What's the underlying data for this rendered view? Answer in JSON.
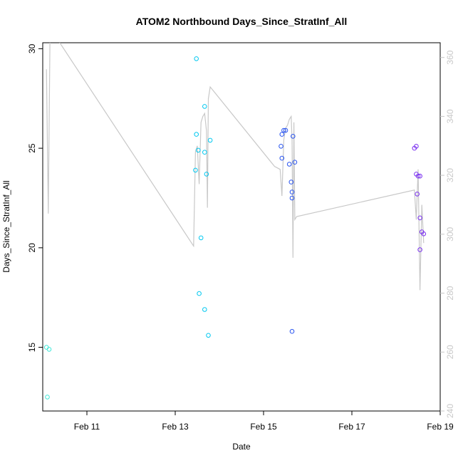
{
  "chart_data": {
    "type": "scatter",
    "title": "ATOM2 Northbound Days_Since_StratInf_All",
    "xlabel": "Date",
    "ylabel": "Days_Since_StratInf_All",
    "x_ticks": [
      "Feb 11",
      "Feb 13",
      "Feb 15",
      "Feb 17",
      "Feb 19"
    ],
    "y_ticks": [
      "15",
      "20",
      "25",
      "30"
    ],
    "y2_ticks": [
      "240",
      "260",
      "280",
      "300",
      "320",
      "340",
      "360"
    ],
    "xlim": [
      "Feb 10 00:00",
      "Feb 19 00:00"
    ],
    "ylim": [
      11.8,
      30.3
    ],
    "y2lim": [
      240,
      365
    ],
    "colors": {
      "cyan_light": "#40e8d8",
      "cyan": "#00c8f0",
      "blue": "#2a55f0",
      "violet": "#7a30f0",
      "line": "#c8c8c8",
      "axis": "#000000",
      "axis2": "#c8c8c8"
    },
    "points": [
      {
        "x": "Feb 10 02:00",
        "y": 15.0,
        "color": "cyan_light"
      },
      {
        "x": "Feb 10 02:30",
        "y": 12.5,
        "color": "cyan_light"
      },
      {
        "x": "Feb 10 03:30",
        "y": 14.9,
        "color": "cyan_light"
      },
      {
        "x": "Feb 13 11:30",
        "y": 29.5,
        "color": "cyan"
      },
      {
        "x": "Feb 13 11:30",
        "y": 25.7,
        "color": "cyan"
      },
      {
        "x": "Feb 13 11:00",
        "y": 23.9,
        "color": "cyan"
      },
      {
        "x": "Feb 13 12:30",
        "y": 24.9,
        "color": "cyan"
      },
      {
        "x": "Feb 13 13:00",
        "y": 17.7,
        "color": "cyan"
      },
      {
        "x": "Feb 13 14:00",
        "y": 20.5,
        "color": "cyan"
      },
      {
        "x": "Feb 13 16:00",
        "y": 27.1,
        "color": "cyan"
      },
      {
        "x": "Feb 13 16:00",
        "y": 24.8,
        "color": "cyan"
      },
      {
        "x": "Feb 13 16:00",
        "y": 16.9,
        "color": "cyan"
      },
      {
        "x": "Feb 13 17:00",
        "y": 23.7,
        "color": "cyan"
      },
      {
        "x": "Feb 13 18:00",
        "y": 15.6,
        "color": "cyan"
      },
      {
        "x": "Feb 13 19:00",
        "y": 25.4,
        "color": "cyan"
      },
      {
        "x": "Feb 15 09:30",
        "y": 25.1,
        "color": "blue"
      },
      {
        "x": "Feb 15 10:00",
        "y": 25.7,
        "color": "blue"
      },
      {
        "x": "Feb 15 10:00",
        "y": 24.5,
        "color": "blue"
      },
      {
        "x": "Feb 15 11:00",
        "y": 25.9,
        "color": "blue"
      },
      {
        "x": "Feb 15 12:00",
        "y": 25.9,
        "color": "blue"
      },
      {
        "x": "Feb 15 14:00",
        "y": 24.2,
        "color": "blue"
      },
      {
        "x": "Feb 15 15:00",
        "y": 23.3,
        "color": "blue"
      },
      {
        "x": "Feb 15 15:30",
        "y": 22.8,
        "color": "blue"
      },
      {
        "x": "Feb 15 15:30",
        "y": 22.5,
        "color": "blue"
      },
      {
        "x": "Feb 15 15:30",
        "y": 15.8,
        "color": "blue"
      },
      {
        "x": "Feb 15 16:00",
        "y": 25.6,
        "color": "blue"
      },
      {
        "x": "Feb 15 17:00",
        "y": 24.3,
        "color": "blue"
      },
      {
        "x": "Feb 18 10:00",
        "y": 25.0,
        "color": "violet"
      },
      {
        "x": "Feb 18 11:00",
        "y": 25.1,
        "color": "violet"
      },
      {
        "x": "Feb 18 11:00",
        "y": 23.7,
        "color": "violet"
      },
      {
        "x": "Feb 18 11:30",
        "y": 22.7,
        "color": "violet"
      },
      {
        "x": "Feb 18 12:00",
        "y": 23.6,
        "color": "violet"
      },
      {
        "x": "Feb 18 13:00",
        "y": 23.6,
        "color": "violet"
      },
      {
        "x": "Feb 18 13:00",
        "y": 21.5,
        "color": "violet"
      },
      {
        "x": "Feb 18 13:00",
        "y": 19.9,
        "color": "violet"
      },
      {
        "x": "Feb 18 14:00",
        "y": 20.8,
        "color": "violet"
      },
      {
        "x": "Feb 18 15:00",
        "y": 20.7,
        "color": "violet"
      }
    ],
    "line_axis": "right",
    "line": [
      [
        "Feb 10 02:00",
        356
      ],
      [
        "Feb 10 03:00",
        307
      ],
      [
        "Feb 10 04:00",
        370
      ],
      [
        "Feb 13 10:00",
        296
      ],
      [
        "Feb 13 11:00",
        328
      ],
      [
        "Feb 13 12:00",
        330
      ],
      [
        "Feb 13 13:00",
        317
      ],
      [
        "Feb 13 14:00",
        338
      ],
      [
        "Feb 13 15:00",
        340
      ],
      [
        "Feb 13 16:00",
        341
      ],
      [
        "Feb 13 17:00",
        335
      ],
      [
        "Feb 13 17:30",
        309
      ],
      [
        "Feb 13 18:00",
        346
      ],
      [
        "Feb 13 19:00",
        350
      ],
      [
        "Feb 15 06:00",
        323
      ],
      [
        "Feb 15 09:00",
        322
      ],
      [
        "Feb 15 10:00",
        313
      ],
      [
        "Feb 15 11:00",
        332
      ],
      [
        "Feb 15 12:00",
        336
      ],
      [
        "Feb 15 13:00",
        337
      ],
      [
        "Feb 15 14:00",
        339
      ],
      [
        "Feb 15 15:00",
        340
      ],
      [
        "Feb 15 15:30",
        332
      ],
      [
        "Feb 15 16:00",
        292
      ],
      [
        "Feb 15 16:30",
        338
      ],
      [
        "Feb 15 17:00",
        305
      ],
      [
        "Feb 15 18:00",
        306
      ],
      [
        "Feb 18 10:00",
        315
      ],
      [
        "Feb 18 11:00",
        305
      ],
      [
        "Feb 18 12:00",
        322
      ],
      [
        "Feb 18 13:00",
        281
      ],
      [
        "Feb 18 14:00",
        310
      ],
      [
        "Feb 18 15:00",
        297
      ]
    ]
  }
}
